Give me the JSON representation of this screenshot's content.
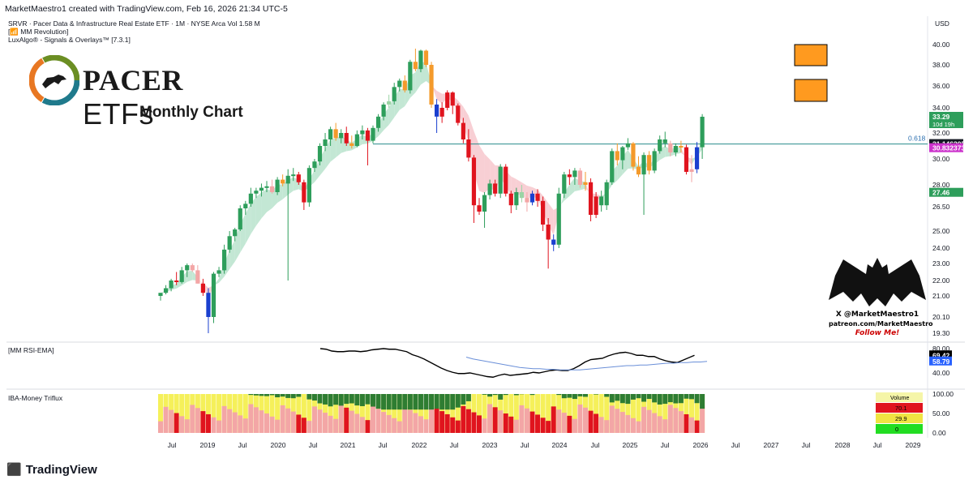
{
  "header": {
    "created_by": "MarketMaestro1 created with TradingView.com, Feb 16, 2026 21:34 UTC-5"
  },
  "symbol_info": {
    "line1": "SRVR · Pacer Data & Infrastructure Real Estate ETF · 1M · NYSE Arca  Vol 1.58 M",
    "line2": "[📶 MM Revolution]",
    "line3": "LuxAlgo® - Signals & Overlays™ [7.3.1]"
  },
  "logo": {
    "brand": "PACER",
    "suffix": "ETFs",
    "colors": {
      "ring1": "#1f7a8c",
      "ring2": "#e87722",
      "ring3": "#6b8e23"
    }
  },
  "subtitle": "Monthly Chart",
  "currency": "USD",
  "colors": {
    "up": "#2e9e5b",
    "down": "#e0141e",
    "strong_up": "#2e9e5b",
    "strong_down": "#1a3fcf",
    "weak_up": "#9bd4a5",
    "weak_down": "#f3a6a6",
    "neutral": "#f49a2b",
    "fib": "#2a8c8c"
  },
  "chart_data": [
    {
      "type": "candlestick",
      "title": "SRVR · Pacer Data & Infrastructure Real Estate ETF · 1M",
      "price_axis": [
        40.0,
        38.0,
        36.0,
        34.0,
        32.0,
        30.0,
        28.0,
        26.5,
        25.0,
        24.0,
        23.0,
        22.0,
        21.0,
        20.1,
        19.3
      ],
      "time_axis": [
        "Jul",
        "2019",
        "Jul",
        "2020",
        "Jul",
        "2021",
        "Jul",
        "2022",
        "Jul",
        "2023",
        "Jul",
        "2024",
        "Jul",
        "2025",
        "Jul",
        "2026",
        "Jul",
        "2027",
        "Jul",
        "2028",
        "Jul",
        "2029"
      ],
      "price_labels": [
        {
          "value": "33.29",
          "sub": "10d 19h",
          "color": "#2e9e5b"
        },
        {
          "value": "31.146205",
          "color": "#131722"
        },
        {
          "value": "30.832373",
          "color": "#cc33cc"
        },
        {
          "value": "27.46",
          "color": "#2e9e5b"
        }
      ],
      "fib_label": "0.618",
      "fib_level": 31.15,
      "candles": [
        [
          21.0,
          21.2,
          20.8,
          21.2,
          "u"
        ],
        [
          21.2,
          21.7,
          21.1,
          21.5,
          "u"
        ],
        [
          21.5,
          22.1,
          21.3,
          22.0,
          "u"
        ],
        [
          22.0,
          22.5,
          21.7,
          21.9,
          "d"
        ],
        [
          21.9,
          22.8,
          21.8,
          22.6,
          "u"
        ],
        [
          22.6,
          23.0,
          22.2,
          22.9,
          "u"
        ],
        [
          22.9,
          23.0,
          22.5,
          22.6,
          "wd"
        ],
        [
          22.6,
          22.9,
          21.8,
          21.8,
          "wd"
        ],
        [
          21.8,
          22.1,
          21.0,
          21.2,
          "d"
        ],
        [
          21.2,
          21.5,
          19.3,
          20.1,
          "sd"
        ],
        [
          20.1,
          22.5,
          19.8,
          22.4,
          "su"
        ],
        [
          22.4,
          22.8,
          22.2,
          22.6,
          "u"
        ],
        [
          22.6,
          24.2,
          22.4,
          23.9,
          "su"
        ],
        [
          23.9,
          25.0,
          23.7,
          24.7,
          "u"
        ],
        [
          24.7,
          25.2,
          24.4,
          25.1,
          "u"
        ],
        [
          25.1,
          26.6,
          25.0,
          26.4,
          "u"
        ],
        [
          26.4,
          26.9,
          26.0,
          26.7,
          "u"
        ],
        [
          26.7,
          27.8,
          26.5,
          27.4,
          "u"
        ],
        [
          27.4,
          27.8,
          27.1,
          27.6,
          "u"
        ],
        [
          27.6,
          28.1,
          27.2,
          27.8,
          "u"
        ],
        [
          27.8,
          28.3,
          27.5,
          27.9,
          "u"
        ],
        [
          27.9,
          28.4,
          27.4,
          27.5,
          "wd"
        ],
        [
          27.5,
          28.6,
          27.3,
          28.4,
          "u"
        ],
        [
          28.4,
          28.8,
          27.9,
          28.1,
          "n"
        ],
        [
          28.1,
          29.2,
          22.0,
          28.7,
          "u"
        ],
        [
          28.7,
          29.3,
          28.3,
          28.8,
          "u"
        ],
        [
          28.8,
          29.0,
          28.0,
          28.2,
          "d"
        ],
        [
          28.2,
          28.4,
          26.3,
          26.8,
          "d"
        ],
        [
          26.8,
          29.5,
          26.5,
          29.3,
          "u"
        ],
        [
          29.3,
          30.0,
          29.0,
          29.8,
          "u"
        ],
        [
          29.8,
          31.2,
          29.5,
          31.0,
          "u"
        ],
        [
          31.0,
          32.0,
          30.6,
          31.5,
          "u"
        ],
        [
          31.5,
          32.5,
          31.0,
          32.3,
          "u"
        ],
        [
          32.3,
          32.8,
          31.4,
          31.6,
          "n"
        ],
        [
          31.6,
          32.3,
          31.2,
          32.0,
          "u"
        ],
        [
          32.0,
          32.5,
          31.0,
          31.2,
          "d"
        ],
        [
          31.2,
          31.8,
          30.8,
          31.0,
          "n"
        ],
        [
          31.0,
          32.2,
          30.9,
          31.9,
          "u"
        ],
        [
          31.9,
          32.6,
          31.5,
          32.2,
          "u"
        ],
        [
          32.2,
          32.4,
          29.5,
          31.4,
          "d"
        ],
        [
          31.4,
          32.6,
          31.2,
          32.4,
          "u"
        ],
        [
          32.4,
          33.5,
          32.1,
          33.3,
          "u"
        ],
        [
          33.3,
          34.5,
          33.0,
          34.3,
          "u"
        ],
        [
          34.3,
          35.2,
          34.0,
          34.6,
          "wu"
        ],
        [
          34.6,
          36.3,
          34.3,
          35.9,
          "u"
        ],
        [
          35.9,
          36.7,
          35.5,
          36.5,
          "u"
        ],
        [
          36.5,
          37.0,
          35.4,
          35.6,
          "n"
        ],
        [
          35.6,
          38.5,
          35.3,
          38.3,
          "u"
        ],
        [
          38.3,
          39.6,
          37.4,
          37.6,
          "n"
        ],
        [
          37.6,
          39.5,
          37.3,
          39.4,
          "u"
        ],
        [
          39.4,
          39.5,
          37.8,
          38.0,
          "n"
        ],
        [
          38.0,
          38.3,
          34.0,
          34.3,
          "n"
        ],
        [
          34.3,
          34.8,
          32.0,
          33.3,
          "sd"
        ],
        [
          33.3,
          34.5,
          32.8,
          34.0,
          "d"
        ],
        [
          34.0,
          35.6,
          33.8,
          35.4,
          "d"
        ],
        [
          35.4,
          35.5,
          33.5,
          34.2,
          "d"
        ],
        [
          34.2,
          34.4,
          32.6,
          32.8,
          "d"
        ],
        [
          32.8,
          33.2,
          31.2,
          31.5,
          "d"
        ],
        [
          31.5,
          32.3,
          29.8,
          30.1,
          "d"
        ],
        [
          30.1,
          30.3,
          25.5,
          26.6,
          "d"
        ],
        [
          26.6,
          27.1,
          26.0,
          26.2,
          "d"
        ],
        [
          26.2,
          27.5,
          25.2,
          27.3,
          "u"
        ],
        [
          27.3,
          28.4,
          27.0,
          28.1,
          "u"
        ],
        [
          28.1,
          28.4,
          27.2,
          27.4,
          "d"
        ],
        [
          27.4,
          29.6,
          27.1,
          29.4,
          "u"
        ],
        [
          29.4,
          29.6,
          27.2,
          27.4,
          "d"
        ],
        [
          27.4,
          27.6,
          26.1,
          26.6,
          "d"
        ],
        [
          26.6,
          27.8,
          26.3,
          27.5,
          "u"
        ],
        [
          27.5,
          28.0,
          26.8,
          27.1,
          "wu"
        ],
        [
          27.1,
          27.5,
          26.2,
          26.8,
          "wd"
        ],
        [
          26.8,
          27.6,
          26.6,
          27.4,
          "sd"
        ],
        [
          27.4,
          27.7,
          26.5,
          26.9,
          "d"
        ],
        [
          26.9,
          27.2,
          25.0,
          25.4,
          "d"
        ],
        [
          25.4,
          25.8,
          22.7,
          24.5,
          "d"
        ],
        [
          24.5,
          24.8,
          23.8,
          24.2,
          "sd"
        ],
        [
          24.2,
          27.8,
          24.0,
          27.4,
          "su"
        ],
        [
          27.4,
          29.0,
          27.1,
          28.8,
          "u"
        ],
        [
          28.8,
          29.2,
          28.0,
          28.6,
          "d"
        ],
        [
          28.6,
          29.3,
          28.0,
          29.1,
          "u"
        ],
        [
          29.1,
          29.3,
          27.8,
          28.0,
          "wd"
        ],
        [
          28.0,
          29.0,
          27.6,
          28.2,
          "n"
        ],
        [
          28.2,
          28.5,
          25.6,
          26.0,
          "d"
        ],
        [
          26.0,
          27.5,
          25.8,
          27.2,
          "d"
        ],
        [
          27.2,
          27.6,
          26.2,
          26.6,
          "u"
        ],
        [
          26.6,
          28.4,
          26.3,
          28.2,
          "u"
        ],
        [
          28.2,
          30.8,
          28.0,
          30.6,
          "u"
        ],
        [
          30.6,
          31.2,
          29.5,
          29.9,
          "n"
        ],
        [
          29.9,
          31.0,
          29.2,
          30.9,
          "u"
        ],
        [
          30.9,
          31.6,
          30.7,
          31.2,
          "u"
        ],
        [
          31.2,
          31.3,
          29.1,
          29.4,
          "n"
        ],
        [
          29.4,
          30.2,
          28.6,
          28.8,
          "n"
        ],
        [
          28.8,
          30.5,
          26.0,
          30.3,
          "u"
        ],
        [
          30.3,
          30.6,
          28.8,
          29.1,
          "n"
        ],
        [
          29.1,
          30.8,
          28.9,
          30.6,
          "u"
        ],
        [
          30.6,
          31.8,
          30.4,
          31.5,
          "u"
        ],
        [
          31.5,
          32.1,
          30.9,
          31.2,
          "u"
        ],
        [
          31.2,
          31.4,
          30.2,
          30.5,
          "wd"
        ],
        [
          30.5,
          31.2,
          30.2,
          31.0,
          "u"
        ],
        [
          31.0,
          31.4,
          30.5,
          30.9,
          "n"
        ],
        [
          30.9,
          31.1,
          28.8,
          29.0,
          "d"
        ],
        [
          29.0,
          30.3,
          28.2,
          29.2,
          "wd"
        ],
        [
          29.2,
          31.3,
          28.9,
          30.9,
          "sd"
        ],
        [
          30.9,
          33.5,
          30.0,
          33.29,
          "u"
        ]
      ]
    },
    {
      "type": "line",
      "title": "[MM RSI-EMA]",
      "axis": [
        80.0,
        60.0,
        40.0
      ],
      "series": [
        {
          "name": "RSI",
          "color": "#000000",
          "last": "69.42",
          "values": [
            80,
            79,
            76,
            75,
            75,
            76,
            76,
            75,
            76,
            78,
            79,
            80,
            79,
            79,
            77,
            75,
            70,
            67,
            63,
            58,
            53,
            48,
            44,
            41,
            39,
            39,
            40,
            38,
            36,
            34,
            33,
            36,
            38,
            36,
            37,
            38,
            39,
            41,
            40,
            42,
            44,
            45,
            44,
            44,
            47,
            52,
            58,
            62,
            63,
            64,
            68,
            71,
            73,
            74,
            72,
            69,
            69,
            67,
            67,
            63,
            60,
            58,
            57,
            61,
            65,
            69
          ]
        },
        {
          "name": "EMA",
          "color": "#6a8fd8",
          "last": "58.79",
          "values": [
            66,
            63,
            61,
            59,
            57,
            55,
            53,
            51,
            49,
            48,
            47,
            47,
            46,
            46,
            45,
            45,
            45,
            45,
            46,
            47,
            48,
            49,
            50,
            51,
            52,
            52,
            53,
            53,
            54,
            55,
            56,
            56,
            57,
            57,
            58,
            58,
            59
          ]
        }
      ]
    },
    {
      "type": "bar",
      "title": "IBA-Money Triflux",
      "axis": [
        100.0,
        50.0,
        0.0
      ],
      "legend": {
        "title": "Volume",
        "items": [
          {
            "label": "70.1",
            "color": "#e0141e"
          },
          {
            "label": "29.9",
            "color": "#f0e442"
          },
          {
            "label": "0",
            "color": "#22dd22"
          }
        ]
      }
    }
  ],
  "bat": {
    "line1": "X @MarketMaestro1",
    "line2": "patreon.com/MarketMaestro",
    "line3": "Follow Me!"
  },
  "footer": {
    "brand": "TradingView"
  }
}
